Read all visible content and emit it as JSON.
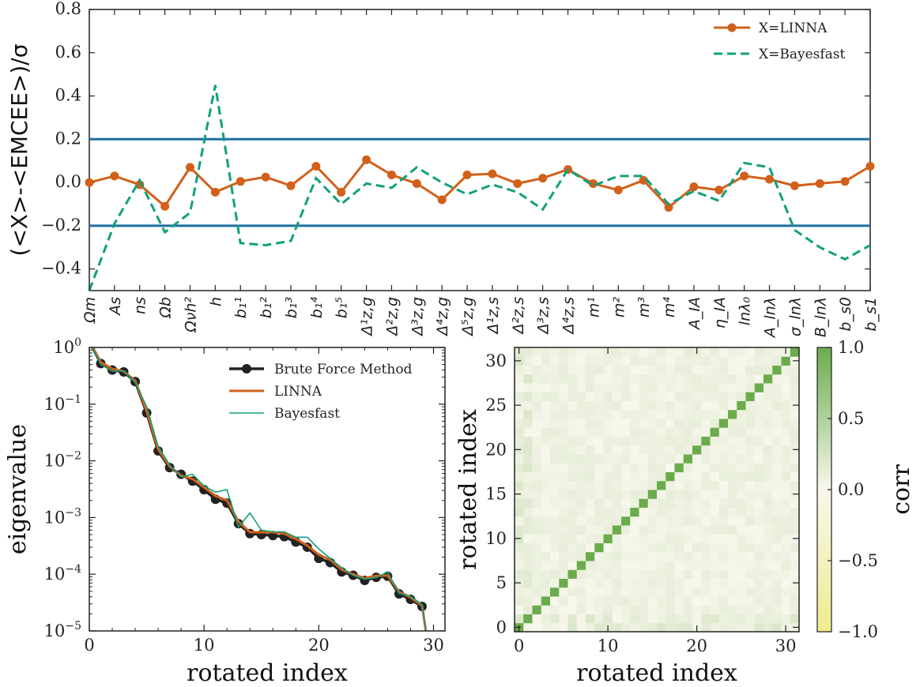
{
  "chart_data": [
    {
      "type": "line",
      "ylabel": "(<X>-<EMCEE>)/σ",
      "ylim": [
        -0.5,
        0.8
      ],
      "yticks": [
        -0.4,
        -0.2,
        0.0,
        0.2,
        0.4,
        0.6,
        0.8
      ],
      "categories": [
        "Ωm",
        "As",
        "ns",
        "Ωb",
        "Ωνh²",
        "h",
        "b₁¹",
        "b₁²",
        "b₁³",
        "b₁⁴",
        "b₁⁵",
        "Δ¹z,g",
        "Δ²z,g",
        "Δ³z,g",
        "Δ⁴z,g",
        "Δ⁵z,g",
        "Δ¹z,s",
        "Δ²z,s",
        "Δ³z,s",
        "Δ⁴z,s",
        "m¹",
        "m²",
        "m³",
        "m⁴",
        "A_IA",
        "η_IA",
        "lnλ₀",
        "A_lnλ",
        "σ_lnλ",
        "B_lnλ",
        "b_s0",
        "b_s1"
      ],
      "hlines": [
        0.2,
        -0.2
      ],
      "hline_color": "#1f6f9e",
      "legend": "top-right",
      "series": [
        {
          "name": "X=LINNA",
          "color": "#d2601a",
          "style": "solid-marker",
          "values": [
            0.0,
            0.03,
            -0.01,
            -0.11,
            0.07,
            -0.045,
            0.005,
            0.025,
            -0.015,
            0.075,
            -0.045,
            0.105,
            0.035,
            -0.005,
            -0.08,
            0.035,
            0.04,
            -0.005,
            0.02,
            0.06,
            -0.005,
            -0.035,
            0.01,
            -0.115,
            -0.02,
            -0.035,
            0.03,
            0.015,
            -0.015,
            -0.005,
            0.005,
            0.075
          ]
        },
        {
          "name": "X=Bayesfast",
          "color": "#12a07a",
          "style": "dashed",
          "values": [
            -0.5,
            -0.19,
            0.01,
            -0.23,
            -0.14,
            0.45,
            -0.28,
            -0.29,
            -0.27,
            0.02,
            -0.1,
            -0.005,
            -0.025,
            0.07,
            0.0,
            -0.055,
            -0.01,
            -0.045,
            -0.125,
            0.06,
            -0.015,
            0.03,
            0.03,
            -0.1,
            -0.04,
            -0.085,
            0.09,
            0.07,
            -0.22,
            -0.3,
            -0.355,
            -0.29
          ]
        }
      ]
    },
    {
      "type": "line",
      "xlabel": "rotated index",
      "ylabel": "eigenvalue",
      "yscale": "log",
      "xlim": [
        0,
        31
      ],
      "ylim": [
        1e-05,
        1
      ],
      "xticks": [
        0,
        10,
        20,
        30
      ],
      "ytick_bases": [
        "10",
        "10",
        "10",
        "10",
        "10",
        "10"
      ],
      "ytick_exps": [
        "0",
        "−1",
        "−2",
        "−3",
        "−4",
        "−5"
      ],
      "legend": "top-right",
      "series": [
        {
          "name": "Brute Force Method",
          "color": "#222222",
          "style": "solid-marker",
          "x": [
            0,
            1,
            2,
            3,
            4,
            5,
            6,
            7,
            8,
            9,
            10,
            11,
            12,
            13,
            14,
            15,
            16,
            17,
            18,
            19,
            20,
            21,
            22,
            23,
            24,
            25,
            26,
            27,
            28,
            29
          ],
          "values": [
            1.3,
            0.52,
            0.4,
            0.37,
            0.25,
            0.07,
            0.015,
            0.0076,
            0.0058,
            0.0044,
            0.0031,
            0.0021,
            0.0018,
            0.00078,
            0.00052,
            0.0005,
            0.00048,
            0.00046,
            0.00037,
            0.0003,
            0.00019,
            0.00016,
            0.00011,
            9.6e-05,
            7.8e-05,
            8.8e-05,
            9.2e-05,
            4.5e-05,
            3.6e-05,
            2.7e-05
          ]
        },
        {
          "name": "LINNA",
          "color": "#d2601a",
          "style": "solid",
          "x": [
            0,
            1,
            2,
            3,
            4,
            5,
            6,
            7,
            8,
            9,
            10,
            11,
            12,
            13,
            14,
            15,
            16,
            17,
            18,
            19,
            20,
            21,
            22,
            23,
            24,
            25,
            26,
            27,
            28,
            29,
            29.5
          ],
          "values": [
            1.3,
            0.55,
            0.42,
            0.38,
            0.26,
            0.075,
            0.016,
            0.008,
            0.0055,
            0.0048,
            0.0034,
            0.0024,
            0.002,
            0.00085,
            0.00055,
            0.00055,
            0.00055,
            0.00052,
            0.00042,
            0.00032,
            0.00022,
            0.00018,
            0.00012,
            0.0001,
            8.5e-05,
            9.4e-05,
            9.5e-05,
            4.9e-05,
            3.9e-05,
            2.8e-05,
            6e-06
          ]
        },
        {
          "name": "Bayesfast",
          "color": "#12a07a",
          "style": "thin",
          "x": [
            0,
            1,
            2,
            3,
            4,
            5,
            6,
            7,
            8,
            9,
            10,
            11,
            12,
            13,
            14,
            15,
            16,
            17,
            18,
            19,
            20,
            21,
            22,
            23,
            24,
            25,
            26,
            27,
            28,
            29,
            29.5
          ],
          "values": [
            1.3,
            0.5,
            0.38,
            0.39,
            0.24,
            0.09,
            0.018,
            0.0085,
            0.0052,
            0.0058,
            0.0036,
            0.0028,
            0.0031,
            0.00068,
            0.0012,
            0.0006,
            0.00056,
            0.00056,
            0.00045,
            0.00045,
            0.00028,
            0.00019,
            0.00013,
            9.5e-05,
            8.2e-05,
            8.7e-05,
            0.00011,
            4.6e-05,
            4.1e-05,
            2.9e-05,
            6e-06
          ]
        }
      ]
    },
    {
      "type": "heatmap",
      "xlabel": "rotated index",
      "ylabel": "rotated index",
      "xticks": [
        0,
        10,
        20,
        30
      ],
      "yticks": [
        0,
        5,
        10,
        15,
        20,
        25,
        30
      ],
      "size": 32,
      "colorbar_label": "corr",
      "colorbar_ticks": [
        "1.0",
        "0.5",
        "0.0",
        "−0.5",
        "−1.0"
      ],
      "vmin": -1.0,
      "vmax": 1.0,
      "color_high": "#6aac4c",
      "color_mid": "#f8f7ec",
      "color_low": "#eeec8e",
      "diagonal": 1.0
    }
  ]
}
